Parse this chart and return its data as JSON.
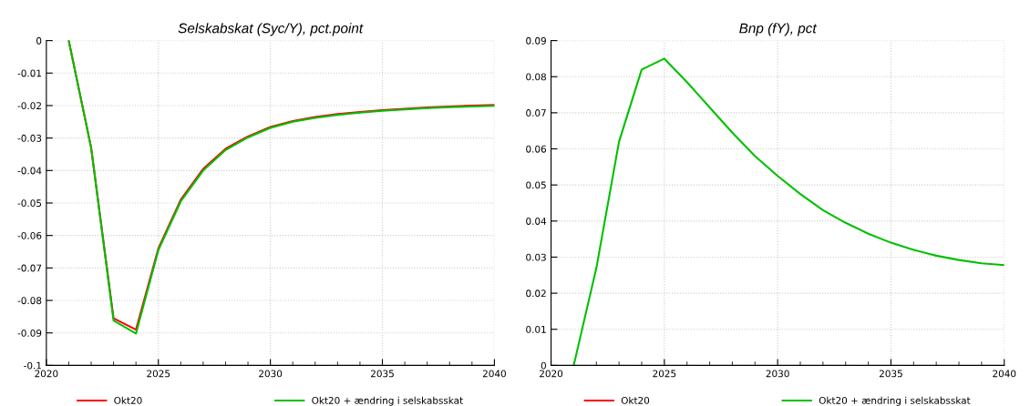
{
  "chart_data": [
    {
      "type": "line",
      "title": "Selskabskat (Syc/Y), pct.point",
      "x": [
        2021,
        2022,
        2023,
        2024,
        2025,
        2026,
        2027,
        2028,
        2029,
        2030,
        2031,
        2032,
        2033,
        2034,
        2035,
        2036,
        2037,
        2038,
        2039,
        2040
      ],
      "series": [
        {
          "name": "Okt20",
          "color": "#ff0000",
          "values": [
            0,
            -0.033,
            -0.0855,
            -0.089,
            -0.064,
            -0.049,
            -0.0395,
            -0.0333,
            -0.0295,
            -0.0266,
            -0.0248,
            -0.0235,
            -0.0226,
            -0.022,
            -0.0214,
            -0.021,
            -0.0206,
            -0.0203,
            -0.02,
            -0.0198
          ]
        },
        {
          "name": "Okt20 + ændring i selskabsskat",
          "color": "#00c000",
          "values": [
            0,
            -0.033,
            -0.0862,
            -0.0902,
            -0.0645,
            -0.0495,
            -0.04,
            -0.0337,
            -0.0298,
            -0.0269,
            -0.025,
            -0.0238,
            -0.0229,
            -0.0222,
            -0.0216,
            -0.0212,
            -0.0208,
            -0.0205,
            -0.0203,
            -0.0201
          ]
        }
      ],
      "xlim": [
        2020,
        2040
      ],
      "xticks": [
        2020,
        2025,
        2030,
        2035,
        2040
      ],
      "ylim": [
        -0.1,
        0
      ],
      "yticks": [
        -0.1,
        -0.09,
        -0.08,
        -0.07,
        -0.06,
        -0.05,
        -0.04,
        -0.03,
        -0.02,
        -0.01,
        0
      ],
      "grid": true,
      "legend": "bottom",
      "marker": "none",
      "line_style": "solid"
    },
    {
      "type": "line",
      "title": "Bnp (fY), pct",
      "x": [
        2021,
        2022,
        2023,
        2024,
        2025,
        2026,
        2027,
        2028,
        2029,
        2030,
        2031,
        2032,
        2033,
        2034,
        2035,
        2036,
        2037,
        2038,
        2039,
        2040
      ],
      "series": [
        {
          "name": "Okt20",
          "color": "#ff0000",
          "values": [
            null,
            null,
            null,
            null,
            null,
            null,
            null,
            null,
            null,
            null,
            null,
            null,
            null,
            null,
            null,
            null,
            null,
            null,
            null,
            null
          ]
        },
        {
          "name": "Okt20 + ændring i selskabsskat",
          "color": "#00c000",
          "values": [
            0,
            0.027,
            0.062,
            0.082,
            0.085,
            0.0785,
            0.0715,
            0.0645,
            0.058,
            0.0525,
            0.0475,
            0.043,
            0.0395,
            0.0365,
            0.034,
            0.032,
            0.0304,
            0.0292,
            0.0283,
            0.0278
          ]
        }
      ],
      "xlim": [
        2020,
        2040
      ],
      "xticks": [
        2020,
        2025,
        2030,
        2035,
        2040
      ],
      "ylim": [
        0,
        0.09
      ],
      "yticks": [
        0,
        0.01,
        0.02,
        0.03,
        0.04,
        0.05,
        0.06,
        0.07,
        0.08,
        0.09
      ],
      "grid": true,
      "legend": "bottom",
      "marker": "none",
      "line_style": "solid"
    }
  ]
}
